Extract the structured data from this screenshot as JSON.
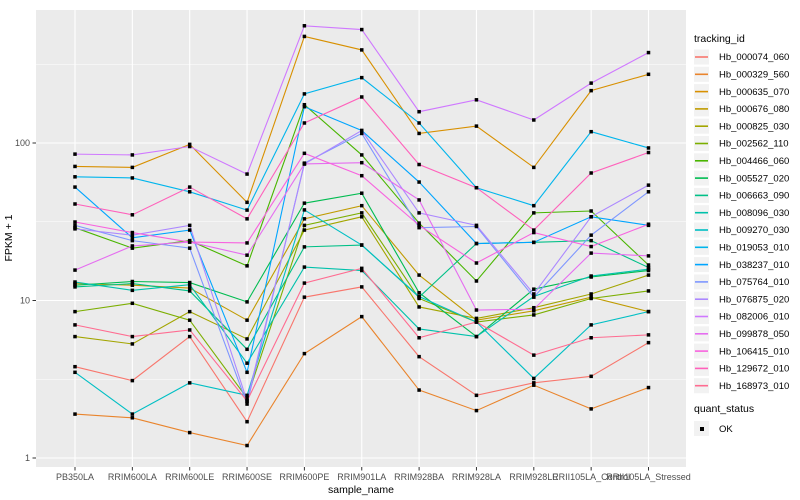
{
  "figure": {
    "background": "#FFFFFF",
    "panel_background": "#EBEBEB",
    "grid_color": "#FFFFFF",
    "axis_text_color": "#4D4D4D",
    "tick_color": "#333333",
    "marker_color": "#000000",
    "legend_key_background": "#F2F2F2"
  },
  "legend": {
    "tracking_title": "tracking_id",
    "quant_title": "quant_status",
    "quant_items": [
      {
        "label": "OK",
        "marker": "black-square"
      }
    ]
  },
  "chart_data": {
    "type": "line",
    "title": "",
    "xlabel": "sample_name",
    "ylabel": "FPKM + 1",
    "y_scale": "log10",
    "y_ticks": [
      1,
      10,
      100
    ],
    "y_minor_ticks": [
      3.162,
      31.62,
      316.2
    ],
    "ylim": [
      0.9,
      700
    ],
    "grid": true,
    "legend_position": "right",
    "marker": "square",
    "categories": [
      "PB350LA",
      "RRIM600LA",
      "RRIM600LE",
      "RRIM600SE",
      "RRIM600PE",
      "RRIM901LA",
      "RRIM928BA",
      "RRIM928LA",
      "RRIM928LE",
      "RRII105LA_Control",
      "RRII105LA_Stressed"
    ],
    "series": [
      {
        "name": "Hb_000074_060",
        "color": "#F8766D",
        "values": [
          3.8,
          3.1,
          5.9,
          1.7,
          10.5,
          12.2,
          4.4,
          2.5,
          3.0,
          3.3,
          5.4
        ]
      },
      {
        "name": "Hb_000329_560",
        "color": "#E9842C",
        "values": [
          1.9,
          1.8,
          1.45,
          1.2,
          4.6,
          7.9,
          2.7,
          2.0,
          2.9,
          2.05,
          2.8
        ]
      },
      {
        "name": "Hb_000635_070",
        "color": "#D89000",
        "values": [
          71,
          70,
          98,
          42,
          475,
          390,
          115,
          128,
          70,
          215,
          273
        ]
      },
      {
        "name": "Hb_000676_080",
        "color": "#C09B00",
        "values": [
          12.8,
          12.5,
          12.0,
          7.5,
          33,
          40,
          14.5,
          7.5,
          8.6,
          10.5,
          8.5
        ]
      },
      {
        "name": "Hb_000825_030",
        "color": "#A3A500",
        "values": [
          5.9,
          5.3,
          8.5,
          5.7,
          28,
          34,
          9.1,
          7.7,
          9.0,
          11.0,
          14.5
        ]
      },
      {
        "name": "Hb_002562_110",
        "color": "#7CAE00",
        "values": [
          8.5,
          9.6,
          7.5,
          2.4,
          30,
          36,
          10.3,
          7.3,
          8.1,
          10.3,
          11.5
        ]
      },
      {
        "name": "Hb_004466_060",
        "color": "#49B500",
        "values": [
          29,
          21.5,
          24,
          16.6,
          175,
          84,
          31,
          13.3,
          36,
          37,
          16.8
        ]
      },
      {
        "name": "Hb_005527_020",
        "color": "#00BC51",
        "values": [
          12.5,
          13.2,
          13.0,
          9.8,
          41.5,
          48,
          11.2,
          5.9,
          11.8,
          14.1,
          15.5
        ]
      },
      {
        "name": "Hb_006663_090",
        "color": "#00C087",
        "values": [
          12.2,
          12.8,
          11.5,
          4.9,
          21.9,
          22.5,
          10.5,
          23,
          23.4,
          24,
          16.2
        ]
      },
      {
        "name": "Hb_008096_030",
        "color": "#00C1AB",
        "values": [
          13.1,
          11.6,
          12.6,
          4.0,
          16.3,
          15.5,
          6.6,
          5.9,
          10.6,
          14.3,
          15.8
        ]
      },
      {
        "name": "Hb_009270_030",
        "color": "#00BFC4",
        "values": [
          3.5,
          1.9,
          3.0,
          2.5,
          37.6,
          22.5,
          10.6,
          7.3,
          3.2,
          7.0,
          8.5
        ]
      },
      {
        "name": "Hb_019053_010",
        "color": "#00B5EC",
        "values": [
          61,
          60,
          49,
          37.5,
          205,
          260,
          134,
          52,
          40,
          118,
          93
        ]
      },
      {
        "name": "Hb_038237_010",
        "color": "#00A5FF",
        "values": [
          52.5,
          25,
          28,
          3.5,
          170,
          120,
          56.5,
          23,
          23.4,
          34,
          30
        ]
      },
      {
        "name": "Hb_075764_010",
        "color": "#7E96FF",
        "values": [
          30,
          24,
          21.5,
          2.2,
          74.5,
          115,
          29,
          29.5,
          10.5,
          26,
          49
        ]
      },
      {
        "name": "Hb_076875_020",
        "color": "#AC88FF",
        "values": [
          28.5,
          26,
          30,
          2.3,
          73.6,
          120,
          36,
          30,
          11.0,
          34,
          54
        ]
      },
      {
        "name": "Hb_082006_010",
        "color": "#CF78FF",
        "values": [
          85,
          84,
          95,
          63.5,
          555,
          525,
          158,
          188,
          140,
          240,
          375
        ]
      },
      {
        "name": "Hb_099878_050",
        "color": "#E56DF0",
        "values": [
          15.6,
          22.2,
          23.5,
          19.4,
          73.6,
          75,
          43.5,
          8.7,
          8.8,
          20,
          19.2
        ]
      },
      {
        "name": "Hb_106415_010",
        "color": "#F863DF",
        "values": [
          31.5,
          27,
          23.5,
          23.2,
          86,
          62,
          30,
          17.3,
          27,
          22,
          30.5
        ]
      },
      {
        "name": "Hb_129672_010",
        "color": "#FF61BB",
        "values": [
          41,
          35,
          52.5,
          33,
          134,
          196,
          73,
          52,
          28,
          64.5,
          87
        ]
      },
      {
        "name": "Hb_168973_010",
        "color": "#FF6C91",
        "values": [
          7.0,
          5.9,
          6.5,
          2.3,
          12.9,
          16,
          5.8,
          7.3,
          4.5,
          5.8,
          6.05
        ]
      }
    ]
  }
}
